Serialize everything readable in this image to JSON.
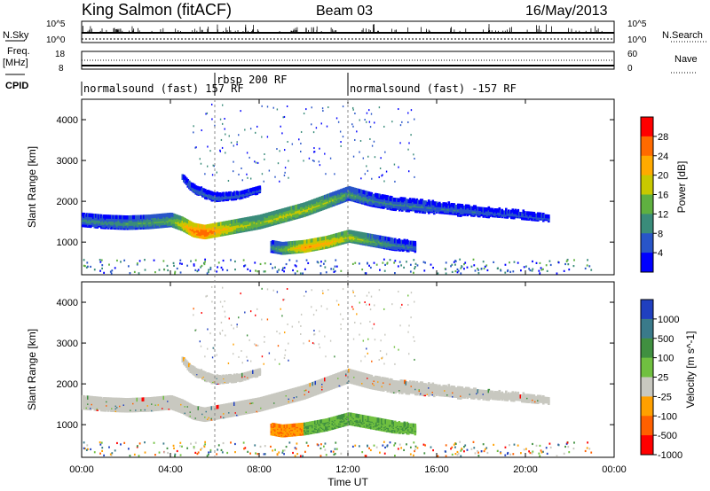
{
  "header": {
    "station": "King Salmon (fitACF)",
    "beam": "Beam 03",
    "date": "16/May/2013"
  },
  "top_panels": {
    "nsky_label": "N.Sky",
    "nsky_ticks": [
      "10^5",
      "10^0"
    ],
    "nsearch_label": "N.Search",
    "nsearch_ticks": [
      "10^5",
      "10^0"
    ],
    "freq_label": "Freq.",
    "freq_unit": "[MHz]",
    "freq_ticks": [
      "18",
      "8"
    ],
    "nave_label": "Nave",
    "nave_ticks": [
      "60",
      "0"
    ],
    "cpid_label": "CPID",
    "cpid_segments": [
      {
        "label": "normalsound (fast) 157 RF",
        "start_hour": 0
      },
      {
        "label": "rbsp 200 RF",
        "start_hour": 6
      },
      {
        "label": "normalsound (fast) -157 RF",
        "start_hour": 12
      }
    ]
  },
  "chart_data": [
    {
      "type": "heatmap",
      "title": "",
      "ylabel": "Slant Range [km]",
      "y_ticks": [
        1000,
        2000,
        3000,
        4000
      ],
      "ylim": [
        200,
        4500
      ],
      "xlim_hours": [
        0,
        24
      ],
      "colorbar": {
        "label": "Power [dB]",
        "ticks": [
          4,
          8,
          12,
          16,
          20,
          24,
          28
        ],
        "colors": [
          "#0000ff",
          "#2855c8",
          "#3a8c7a",
          "#5fb040",
          "#c8c800",
          "#ffaa00",
          "#ff6a00",
          "#ff0000"
        ]
      },
      "echo_bands": [
        {
          "name": "main F-region band",
          "x_hours": [
            0,
            1,
            2,
            3,
            4,
            4.5,
            5,
            5.5,
            6,
            7,
            8,
            9,
            10,
            11,
            12,
            13,
            14,
            15,
            16,
            17,
            18,
            19,
            20,
            21
          ],
          "y_km": [
            1550,
            1500,
            1480,
            1500,
            1550,
            1450,
            1300,
            1250,
            1300,
            1400,
            1500,
            1650,
            1800,
            2000,
            2200,
            2050,
            1950,
            1900,
            1850,
            1800,
            1750,
            1700,
            1650,
            1600
          ],
          "power_db": [
            10,
            10,
            11,
            12,
            14,
            20,
            26,
            28,
            24,
            18,
            16,
            18,
            18,
            16,
            12,
            10,
            9,
            9,
            8,
            8,
            7,
            6,
            6,
            5
          ]
        },
        {
          "name": "upper band",
          "x_hours": [
            4.5,
            5,
            6,
            7,
            8
          ],
          "y_km": [
            2600,
            2300,
            2100,
            2150,
            2300
          ],
          "power_db": [
            6,
            8,
            8,
            7,
            6
          ]
        },
        {
          "name": "lower band",
          "x_hours": [
            8.5,
            9,
            10,
            11,
            12,
            13,
            14,
            15
          ],
          "y_km": [
            900,
            850,
            900,
            1000,
            1150,
            1050,
            950,
            900
          ],
          "power_db": [
            10,
            14,
            24,
            22,
            18,
            14,
            10,
            8
          ]
        }
      ]
    },
    {
      "type": "heatmap",
      "title": "",
      "xlabel": "Time UT",
      "ylabel": "Slant Range [km]",
      "x_tick_labels": [
        "00:00",
        "04:00",
        "08:00",
        "12:00",
        "16:00",
        "20:00",
        "00:00"
      ],
      "y_ticks": [
        1000,
        2000,
        3000,
        4000
      ],
      "ylim": [
        200,
        4500
      ],
      "xlim_hours": [
        0,
        24
      ],
      "colorbar": {
        "label": "Velocity [m s^-1]",
        "ticks": [
          1000,
          500,
          100,
          25,
          -25,
          -100,
          -500,
          -1000
        ],
        "colors": [
          "#2040c0",
          "#3a7a8a",
          "#409040",
          "#70c040",
          "#c8c8c0",
          "#ffa000",
          "#ff6000",
          "#ff0000"
        ]
      },
      "echo_regions": [
        {
          "name": "ground scatter band",
          "velocity": 0
        },
        {
          "name": "lower band 8-9 UT",
          "velocity": -300
        },
        {
          "name": "lower band 10-14 UT",
          "velocity": 80
        }
      ]
    }
  ]
}
